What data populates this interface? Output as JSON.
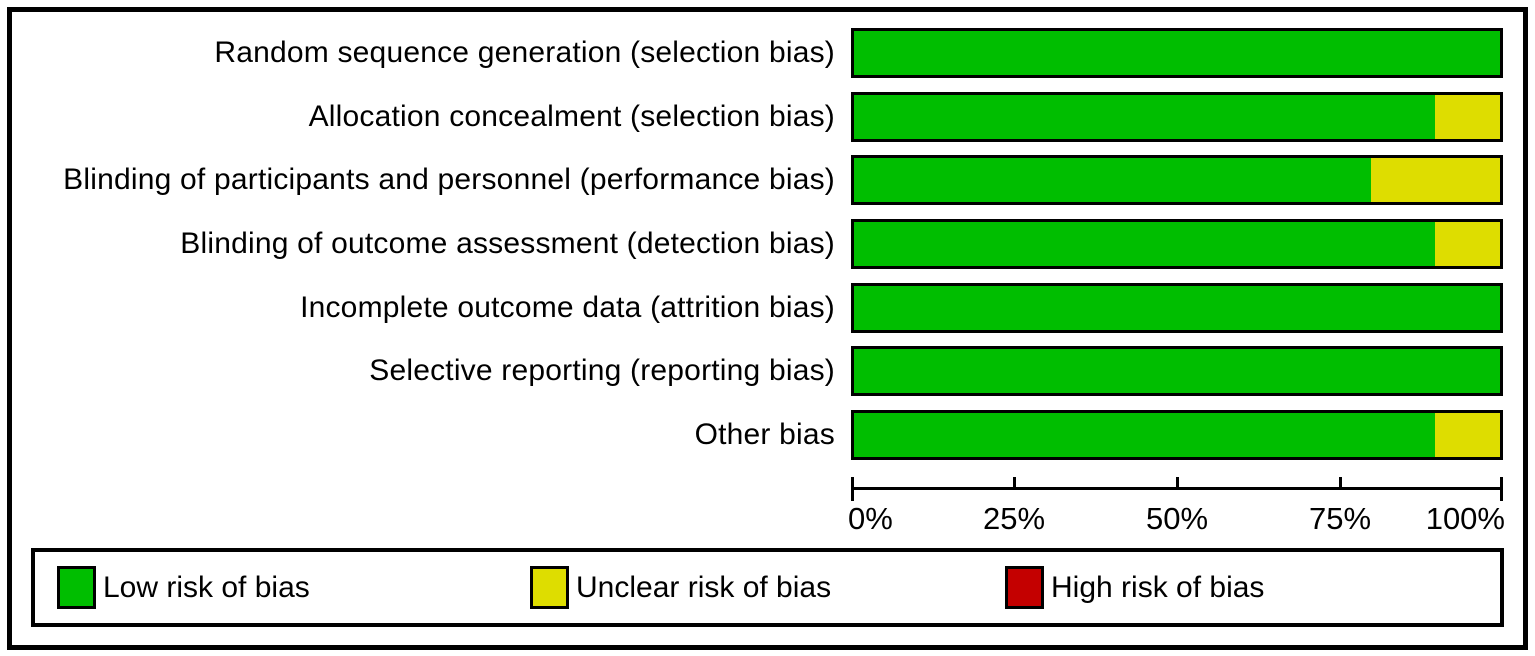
{
  "chart_data": {
    "type": "bar",
    "orientation": "horizontal",
    "stacked": true,
    "title": "",
    "xlabel": "",
    "ylabel": "",
    "grid": false,
    "categories": [
      "Random sequence generation (selection bias)",
      "Allocation concealment (selection bias)",
      "Blinding of participants and personnel (performance bias)",
      "Blinding of outcome assessment (detection bias)",
      "Incomplete outcome data (attrition bias)",
      "Selective reporting (reporting bias)",
      "Other bias"
    ],
    "series": [
      {
        "name": "Low risk of bias",
        "color": "#00be00",
        "values": [
          100,
          90,
          80,
          90,
          100,
          100,
          90
        ]
      },
      {
        "name": "Unclear risk of bias",
        "color": "#dedd00",
        "values": [
          0,
          10,
          20,
          10,
          0,
          0,
          10
        ]
      },
      {
        "name": "High risk of bias",
        "color": "#c40000",
        "values": [
          0,
          0,
          0,
          0,
          0,
          0,
          0
        ]
      }
    ],
    "x_axis": {
      "range": [
        0,
        100
      ],
      "tick_values": [
        0,
        25,
        50,
        75,
        100
      ],
      "tick_labels": [
        "0%",
        "25%",
        "50%",
        "75%",
        "100%"
      ]
    },
    "legend": {
      "position": "bottom",
      "entries": [
        {
          "label": "Low risk of bias",
          "color": "#00be00"
        },
        {
          "label": "Unclear risk of bias",
          "color": "#dedd00"
        },
        {
          "label": "High risk of bias",
          "color": "#c40000"
        }
      ]
    }
  }
}
